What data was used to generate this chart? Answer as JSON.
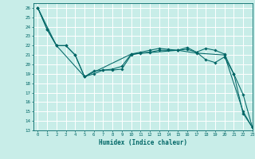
{
  "xlabel": "Humidex (Indice chaleur)",
  "ylabel": "",
  "xlim": [
    -0.5,
    23
  ],
  "ylim": [
    13,
    26.5
  ],
  "yticks": [
    13,
    14,
    15,
    16,
    17,
    18,
    19,
    20,
    21,
    22,
    23,
    24,
    25,
    26
  ],
  "xticks": [
    0,
    1,
    2,
    3,
    4,
    5,
    6,
    7,
    8,
    9,
    10,
    11,
    12,
    13,
    14,
    15,
    16,
    17,
    18,
    19,
    20,
    21,
    22,
    23
  ],
  "bg_color": "#c8ede8",
  "grid_color": "#ffffff",
  "line_color": "#006666",
  "series": [
    {
      "x": [
        0,
        1,
        2,
        3,
        4,
        5,
        6,
        7,
        8,
        9,
        10,
        11,
        12,
        13,
        14,
        15,
        16,
        17,
        18,
        19,
        20,
        21,
        22,
        23
      ],
      "y": [
        26,
        23.7,
        22,
        22,
        21,
        18.7,
        19,
        19.4,
        19.4,
        19.5,
        21,
        21.2,
        21.3,
        21.5,
        21.5,
        21.5,
        21.8,
        21.3,
        21.7,
        21.5,
        21.1,
        19,
        14.8,
        13.3
      ],
      "marker": "D",
      "markersize": 1.8
    },
    {
      "x": [
        0,
        1,
        2,
        3,
        4,
        5,
        6,
        7,
        8,
        9,
        10,
        11,
        12,
        13,
        14,
        15,
        16,
        17,
        18,
        19,
        20,
        21,
        22,
        23
      ],
      "y": [
        26,
        23.7,
        22,
        22,
        21,
        18.7,
        19.3,
        19.4,
        19.5,
        19.8,
        21.1,
        21.3,
        21.5,
        21.7,
        21.6,
        21.5,
        21.6,
        21.3,
        20.5,
        20.2,
        20.8,
        19.0,
        16.8,
        13.3
      ],
      "marker": "D",
      "markersize": 1.8
    },
    {
      "x": [
        0,
        2,
        5,
        10,
        15,
        17,
        20,
        22,
        23
      ],
      "y": [
        26,
        22,
        18.7,
        21.1,
        21.5,
        21.2,
        21.0,
        15.0,
        13.3
      ],
      "marker": "D",
      "markersize": 1.8
    }
  ]
}
